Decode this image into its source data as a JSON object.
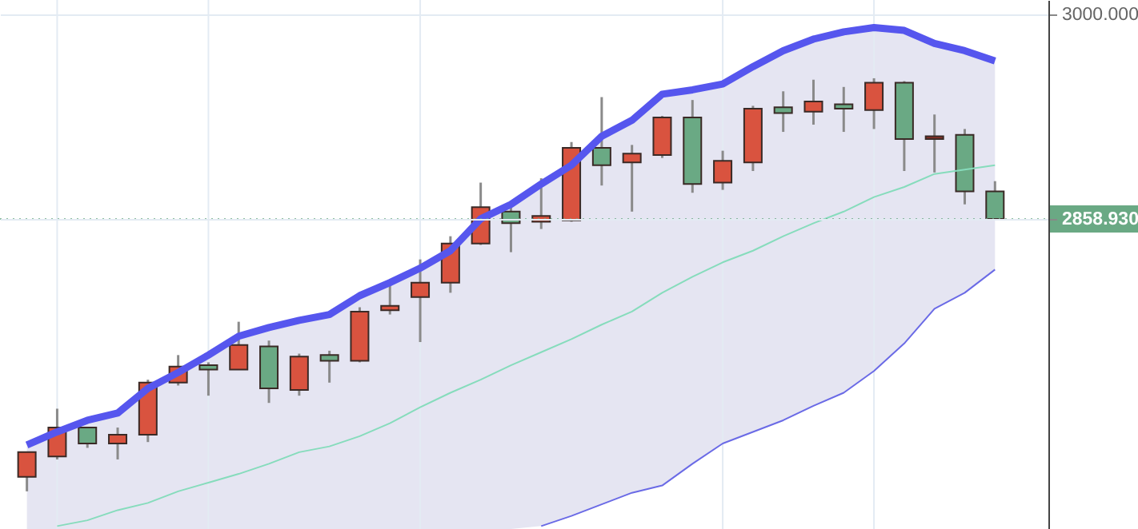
{
  "chart_data": {
    "type": "candlestick",
    "categories": [
      null,
      null,
      null,
      null,
      null,
      null,
      null,
      null,
      null,
      null,
      null,
      null,
      null,
      null,
      null,
      null,
      null,
      null,
      null,
      null,
      null,
      null,
      null,
      null,
      null,
      null,
      null,
      null,
      null,
      null,
      null,
      null,
      null
    ],
    "ohlc": [
      [
        2681,
        2698,
        2671,
        2698
      ],
      [
        2695,
        2728,
        2693,
        2715
      ],
      [
        2715,
        2715,
        2701,
        2704
      ],
      [
        2704,
        2715,
        2693,
        2710
      ],
      [
        2710,
        2748,
        2705,
        2746
      ],
      [
        2746,
        2765,
        2744,
        2757
      ],
      [
        2758,
        2760,
        2737,
        2755
      ],
      [
        2755,
        2788,
        2755,
        2772
      ],
      [
        2771,
        2775,
        2732,
        2742
      ],
      [
        2741,
        2766,
        2737,
        2764
      ],
      [
        2765,
        2768,
        2746,
        2761
      ],
      [
        2761,
        2798,
        2760,
        2795
      ],
      [
        2796,
        2817,
        2793,
        2799
      ],
      [
        2805,
        2831,
        2774,
        2815
      ],
      [
        2815,
        2847,
        2808,
        2842
      ],
      [
        2842,
        2884,
        2841,
        2867
      ],
      [
        2864,
        2871,
        2836,
        2856
      ],
      [
        2857,
        2887,
        2852,
        2861
      ],
      [
        2858,
        2912,
        2857,
        2908
      ],
      [
        2908,
        2943,
        2882,
        2896
      ],
      [
        2898,
        2910,
        2864,
        2904
      ],
      [
        2903,
        2930,
        2901,
        2929
      ],
      [
        2929,
        2941,
        2877,
        2883
      ],
      [
        2884,
        2906,
        2879,
        2899
      ],
      [
        2898,
        2937,
        2892,
        2935
      ],
      [
        2936,
        2947,
        2919,
        2932
      ],
      [
        2933,
        2955,
        2924,
        2940
      ],
      [
        2938,
        2950,
        2919,
        2935
      ],
      [
        2934,
        2956,
        2921,
        2953
      ],
      [
        2953,
        2954,
        2892,
        2914
      ],
      [
        2914,
        2931,
        2891,
        2916
      ],
      [
        2917,
        2921,
        2869,
        2878
      ],
      [
        2878,
        2885,
        2858.93,
        2858.93
      ]
    ],
    "colors": [
      "#d9533f",
      "#d9533f",
      "#6aa984",
      "#d9533f",
      "#d9533f",
      "#d9533f",
      "#6aa984",
      "#d9533f",
      "#6aa984",
      "#d9533f",
      "#6aa984",
      "#d9533f",
      "#d9533f",
      "#d9533f",
      "#d9533f",
      "#d9533f",
      "#6aa984",
      "#d9533f",
      "#d9533f",
      "#6aa984",
      "#d9533f",
      "#d9533f",
      "#6aa984",
      "#d9533f",
      "#d9533f",
      "#6aa984",
      "#d9533f",
      "#6aa984",
      "#d9533f",
      "#6aa984",
      "#8b2f25",
      "#6aa984",
      "#6aa984"
    ],
    "series": [
      {
        "type": "area",
        "color": "#5656ee",
        "values": [
          2703,
          2712,
          2720,
          2725,
          2742,
          2753,
          2765,
          2778,
          2784,
          2789,
          2793,
          2806,
          2815,
          2825,
          2837,
          2859,
          2869,
          2883,
          2896,
          2916,
          2927,
          2945,
          2948,
          2952,
          2964,
          2975,
          2983,
          2988,
          2991,
          2989,
          2980,
          2975,
          2968
        ]
      },
      {
        "type": "line",
        "color": "#86dcbc",
        "values": [
          null,
          2647,
          2651,
          2658,
          2663,
          2671,
          2677,
          2683,
          2690,
          2698,
          2702,
          2709,
          2718,
          2729,
          2739,
          2748,
          2758,
          2767,
          2776,
          2786,
          2795,
          2808,
          2819,
          2829,
          2837,
          2847,
          2856,
          2864,
          2874,
          2881,
          2890,
          2893,
          2896
        ]
      },
      {
        "type": "line",
        "color": "#6a6ae6",
        "values": [
          null,
          null,
          null,
          null,
          null,
          null,
          null,
          null,
          null,
          null,
          null,
          null,
          null,
          null,
          null,
          null,
          null,
          2647,
          2654,
          2662,
          2670,
          2675,
          2690,
          2704,
          2712,
          2720,
          2730,
          2739,
          2754,
          2773,
          2797,
          2808,
          2824
        ]
      }
    ],
    "ylim": [
      2645,
      3010
    ],
    "yticks": [
      {
        "value": 2858.93,
        "label": "2858.930"
      },
      {
        "value": 3000,
        "label": "3000.000"
      }
    ],
    "ref_lines": [
      {
        "axis": "y",
        "value": 2858.93,
        "color": "#6aa984",
        "line_style": "dotted"
      }
    ],
    "grid": true,
    "tick_labels": "y"
  }
}
